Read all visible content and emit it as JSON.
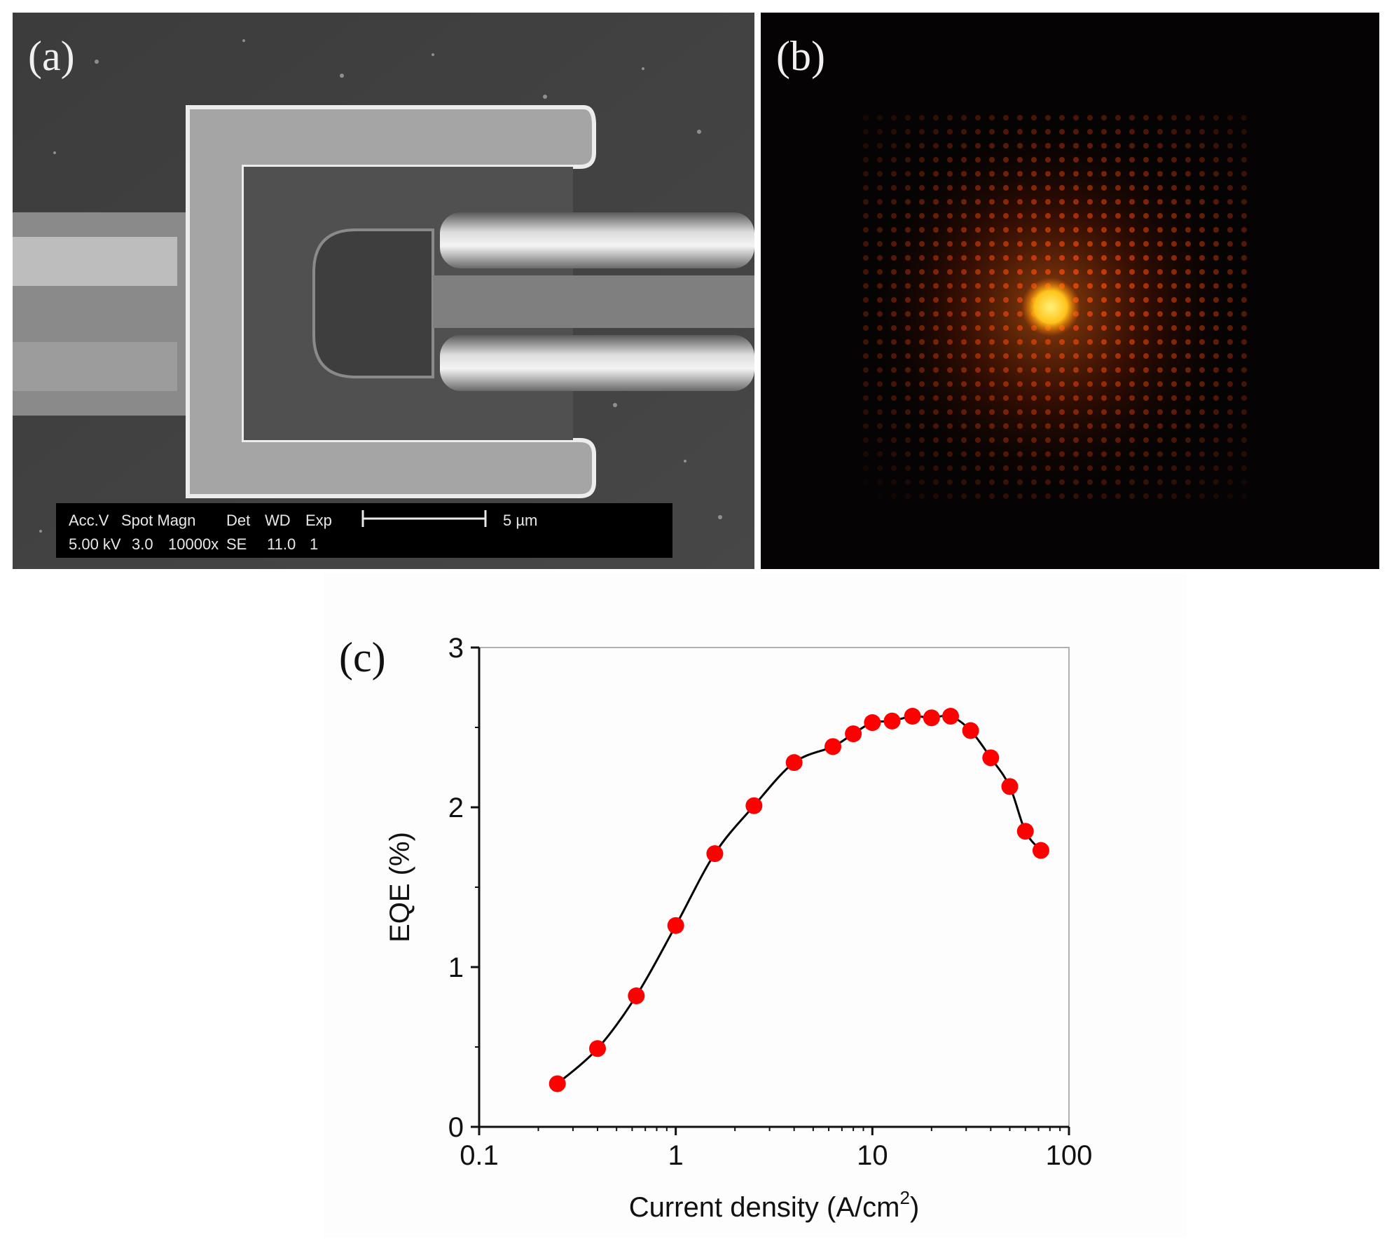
{
  "panels": {
    "a": {
      "label": "(a)",
      "databar": {
        "headers": [
          "Acc.V",
          "Spot Magn",
          "Det",
          "WD",
          "Exp"
        ],
        "values": [
          "5.00 kV",
          "3.0",
          "10000x",
          "SE",
          "11.0",
          "1"
        ],
        "scale_label": "5 µm"
      }
    },
    "b": {
      "label": "(b)"
    },
    "c": {
      "label": "(c)"
    }
  },
  "chart_data": {
    "type": "line",
    "title": "",
    "xlabel": "Current density (A/cm",
    "xlabel_sup": "2",
    "xlabel_tail": ")",
    "ylabel": "EQE (%)",
    "xscale": "log",
    "xlim": [
      0.1,
      100
    ],
    "ylim": [
      0,
      3
    ],
    "xticks": [
      0.1,
      1,
      10,
      100
    ],
    "xtick_labels": [
      "0.1",
      "1",
      "10",
      "100"
    ],
    "yticks": [
      0,
      1,
      2,
      3
    ],
    "ytick_labels": [
      "0",
      "1",
      "2",
      "3"
    ],
    "grid": false,
    "legend": false,
    "marker_color": "#ff0000",
    "line_color": "#000000",
    "series": [
      {
        "x": [
          0.25,
          0.4,
          0.63,
          1.0,
          1.58,
          2.5,
          4.0,
          6.3,
          8.0,
          10,
          12.6,
          16,
          20,
          25,
          31.6,
          40,
          50,
          60,
          72
        ],
        "y": [
          0.27,
          0.49,
          0.82,
          1.26,
          1.71,
          2.01,
          2.28,
          2.38,
          2.46,
          2.53,
          2.54,
          2.57,
          2.56,
          2.57,
          2.48,
          2.31,
          2.13,
          1.85,
          1.73
        ]
      }
    ]
  }
}
